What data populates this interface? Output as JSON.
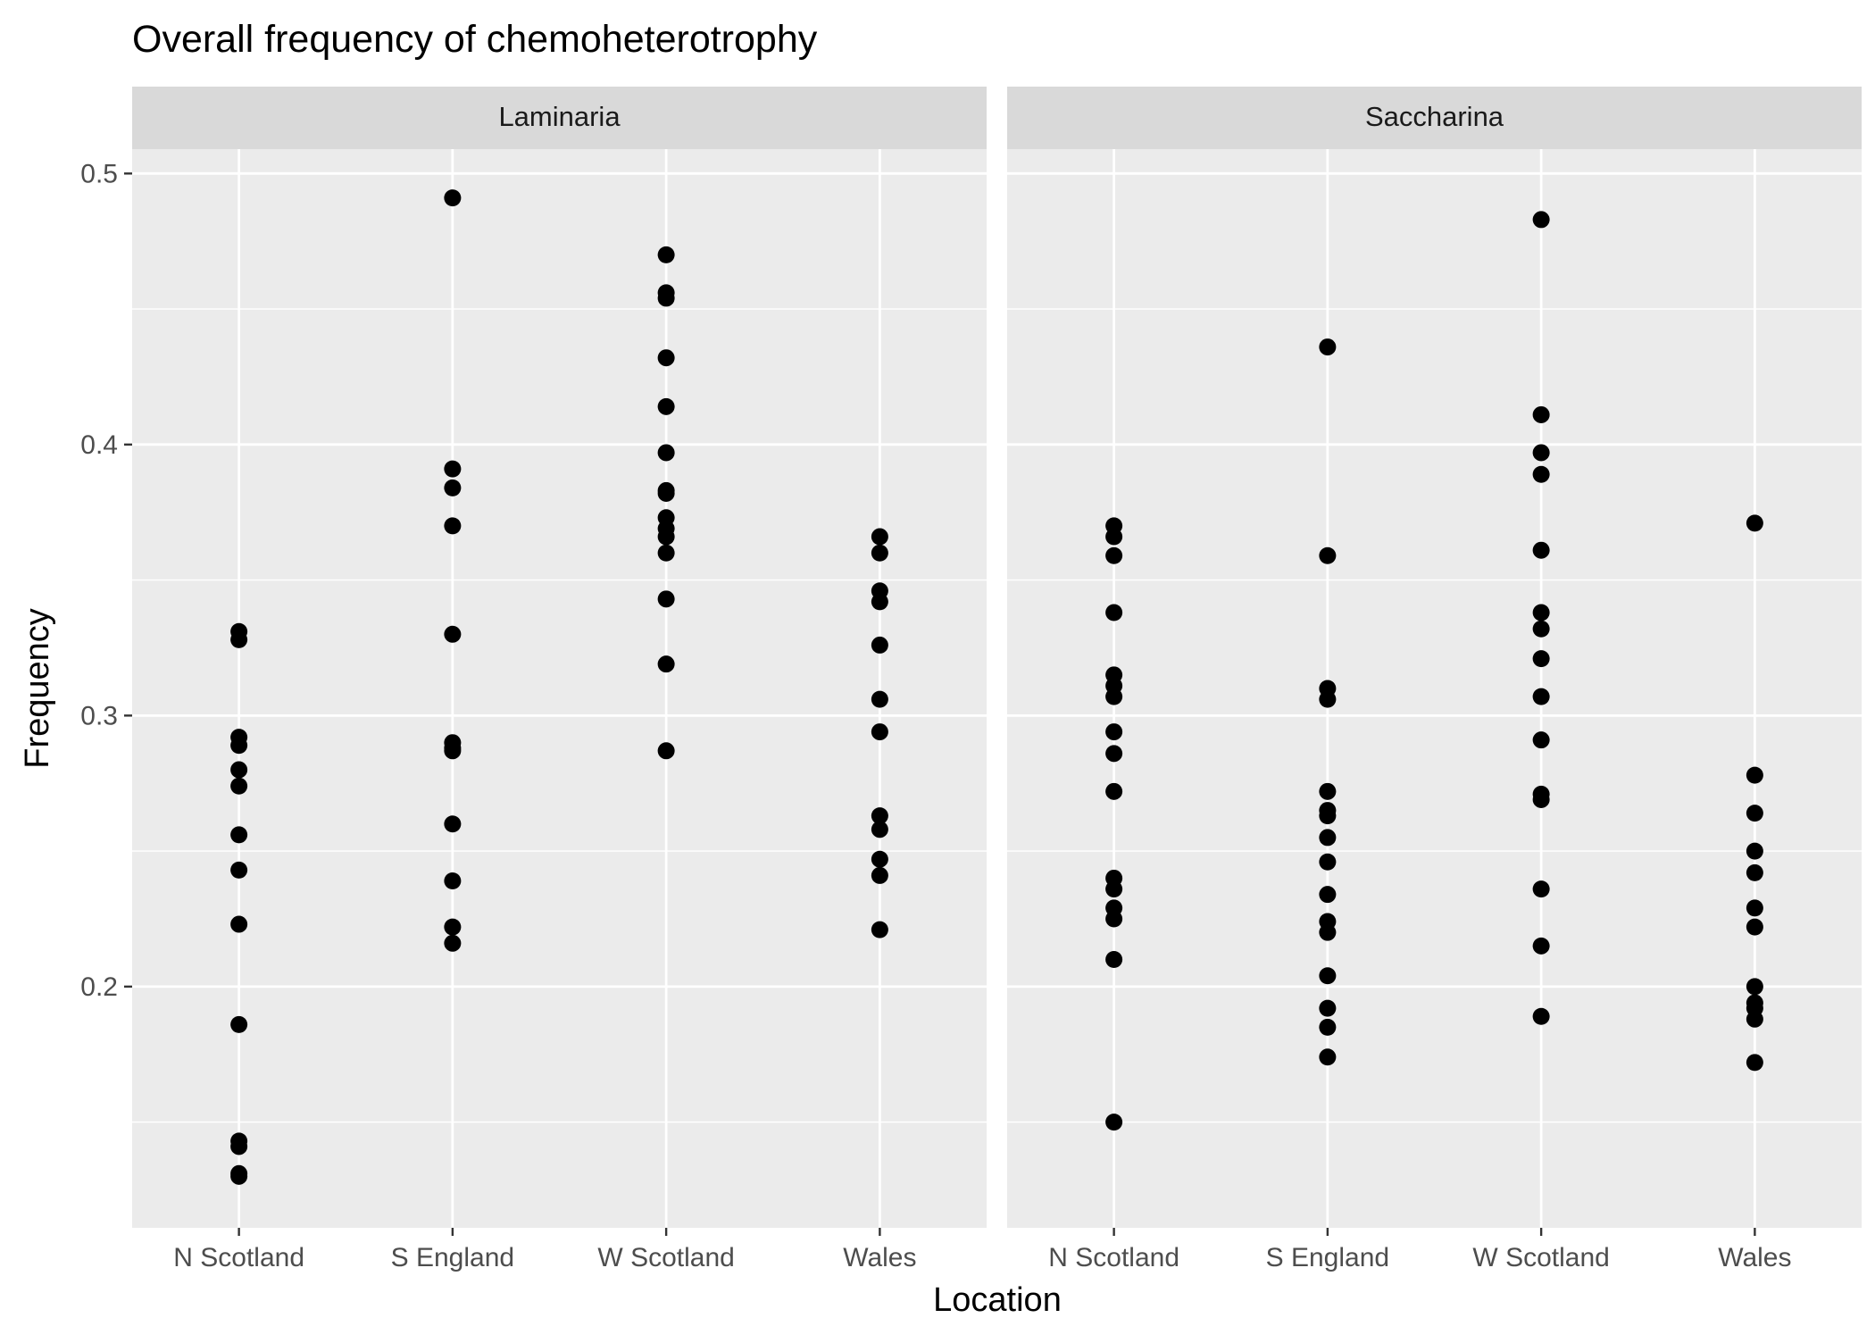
{
  "chart_data": {
    "type": "scatter",
    "title": "Overall frequency of chemoheterotrophy",
    "xlabel": "Location",
    "ylabel": "Frequency",
    "categories": [
      "N Scotland",
      "S England",
      "W Scotland",
      "Wales"
    ],
    "ylim": [
      0.111,
      0.509
    ],
    "yticks": [
      0.2,
      0.3,
      0.4,
      0.5
    ],
    "ytick_labels": [
      "0.2",
      "0.3",
      "0.4",
      "0.5"
    ],
    "grid": true,
    "point_color": "#000000",
    "panel_background": "#ebebeb",
    "strip_background": "#d9d9d9",
    "grid_color": "#ffffff",
    "facets": [
      {
        "label": "Laminaria",
        "series": [
          {
            "category": "N Scotland",
            "values": [
              0.331,
              0.328,
              0.292,
              0.289,
              0.28,
              0.274,
              0.256,
              0.243,
              0.223,
              0.186,
              0.143,
              0.141,
              0.131,
              0.13
            ]
          },
          {
            "category": "S England",
            "values": [
              0.491,
              0.391,
              0.384,
              0.37,
              0.33,
              0.29,
              0.288,
              0.287,
              0.26,
              0.239,
              0.222,
              0.216
            ]
          },
          {
            "category": "W Scotland",
            "values": [
              0.47,
              0.456,
              0.454,
              0.432,
              0.414,
              0.397,
              0.383,
              0.382,
              0.373,
              0.369,
              0.366,
              0.36,
              0.343,
              0.319,
              0.287
            ]
          },
          {
            "category": "Wales",
            "values": [
              0.366,
              0.36,
              0.346,
              0.342,
              0.326,
              0.306,
              0.294,
              0.263,
              0.258,
              0.247,
              0.241,
              0.221
            ]
          }
        ]
      },
      {
        "label": "Saccharina",
        "series": [
          {
            "category": "N Scotland",
            "values": [
              0.37,
              0.366,
              0.359,
              0.338,
              0.315,
              0.311,
              0.307,
              0.294,
              0.286,
              0.272,
              0.24,
              0.236,
              0.229,
              0.225,
              0.21,
              0.15
            ]
          },
          {
            "category": "S England",
            "values": [
              0.436,
              0.359,
              0.31,
              0.306,
              0.272,
              0.265,
              0.263,
              0.255,
              0.246,
              0.234,
              0.224,
              0.22,
              0.204,
              0.192,
              0.185,
              0.174
            ]
          },
          {
            "category": "W Scotland",
            "values": [
              0.483,
              0.411,
              0.397,
              0.389,
              0.361,
              0.338,
              0.332,
              0.321,
              0.307,
              0.291,
              0.271,
              0.269,
              0.236,
              0.215,
              0.189
            ]
          },
          {
            "category": "Wales",
            "values": [
              0.371,
              0.278,
              0.264,
              0.25,
              0.242,
              0.229,
              0.222,
              0.2,
              0.194,
              0.192,
              0.188,
              0.172
            ]
          }
        ]
      }
    ]
  }
}
